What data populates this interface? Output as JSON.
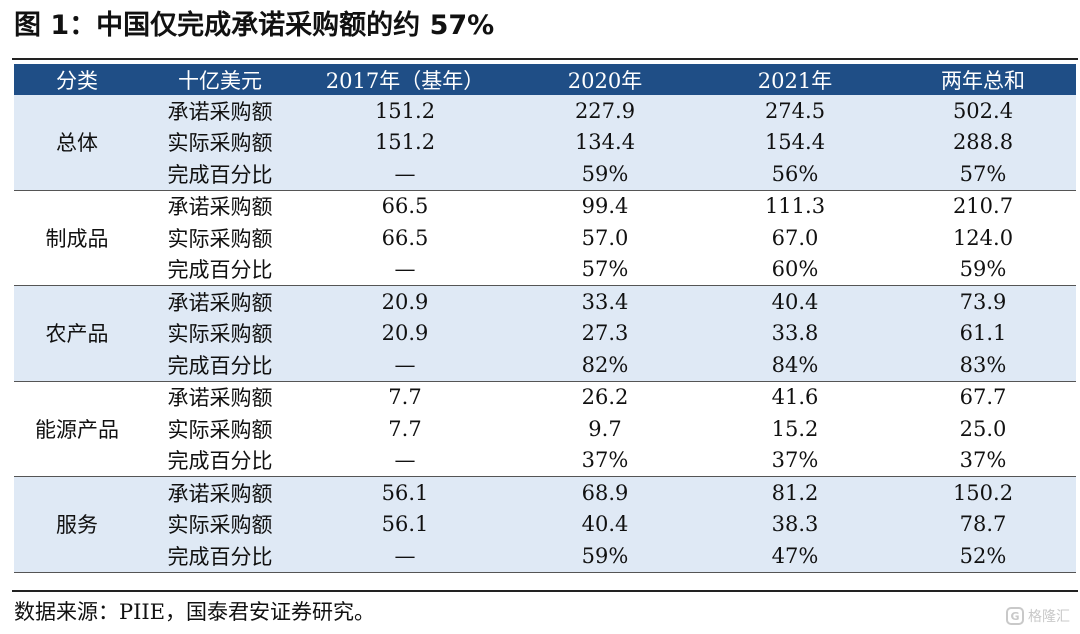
{
  "title": "图 1：中国仅完成承诺采购额的约 57%",
  "table": {
    "headers": [
      "分类",
      "十亿美元",
      "2017年（基年）",
      "2020年",
      "2021年",
      "两年总和"
    ],
    "groups": [
      {
        "category": "总体",
        "rows": [
          {
            "metric": "承诺采购额",
            "base": "151.2",
            "y2020": "227.9",
            "y2021": "274.5",
            "total": "502.4"
          },
          {
            "metric": "实际采购额",
            "base": "151.2",
            "y2020": "134.4",
            "y2021": "154.4",
            "total": "288.8"
          },
          {
            "metric": "完成百分比",
            "base": "—",
            "y2020": "59%",
            "y2021": "56%",
            "total": "57%"
          }
        ]
      },
      {
        "category": "制成品",
        "rows": [
          {
            "metric": "承诺采购额",
            "base": "66.5",
            "y2020": "99.4",
            "y2021": "111.3",
            "total": "210.7"
          },
          {
            "metric": "实际采购额",
            "base": "66.5",
            "y2020": "57.0",
            "y2021": "67.0",
            "total": "124.0"
          },
          {
            "metric": "完成百分比",
            "base": "—",
            "y2020": "57%",
            "y2021": "60%",
            "total": "59%"
          }
        ]
      },
      {
        "category": "农产品",
        "rows": [
          {
            "metric": "承诺采购额",
            "base": "20.9",
            "y2020": "33.4",
            "y2021": "40.4",
            "total": "73.9"
          },
          {
            "metric": "实际采购额",
            "base": "20.9",
            "y2020": "27.3",
            "y2021": "33.8",
            "total": "61.1"
          },
          {
            "metric": "完成百分比",
            "base": "—",
            "y2020": "82%",
            "y2021": "84%",
            "total": "83%"
          }
        ]
      },
      {
        "category": "能源产品",
        "rows": [
          {
            "metric": "承诺采购额",
            "base": "7.7",
            "y2020": "26.2",
            "y2021": "41.6",
            "total": "67.7"
          },
          {
            "metric": "实际采购额",
            "base": "7.7",
            "y2020": "9.7",
            "y2021": "15.2",
            "total": "25.0"
          },
          {
            "metric": "完成百分比",
            "base": "—",
            "y2020": "37%",
            "y2021": "37%",
            "total": "37%"
          }
        ]
      },
      {
        "category": "服务",
        "rows": [
          {
            "metric": "承诺采购额",
            "base": "56.1",
            "y2020": "68.9",
            "y2021": "81.2",
            "total": "150.2"
          },
          {
            "metric": "实际采购额",
            "base": "56.1",
            "y2020": "40.4",
            "y2021": "38.3",
            "total": "78.7"
          },
          {
            "metric": "完成百分比",
            "base": "—",
            "y2020": "59%",
            "y2021": "47%",
            "total": "52%"
          }
        ]
      }
    ]
  },
  "source": "数据来源：PIIE，国泰君安证券研究。",
  "watermark": {
    "icon": "G",
    "text": "格隆汇"
  },
  "colors": {
    "header_bg": "#1f4e86",
    "shade_bg": "#dfe9f5",
    "header_text": "#ffffff"
  }
}
